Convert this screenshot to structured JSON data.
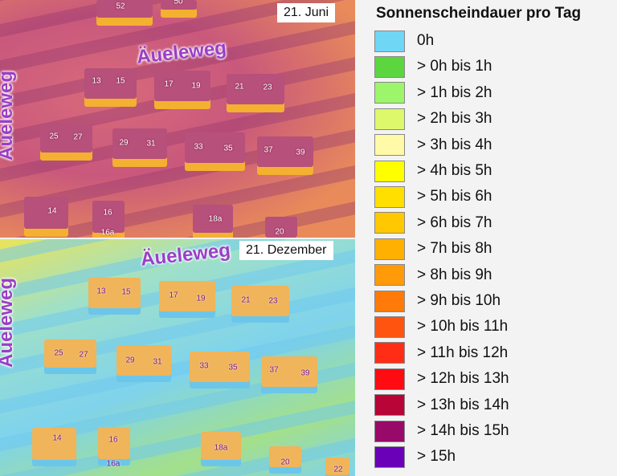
{
  "panels": [
    {
      "date": "21. Juni",
      "street": "Äueleweg",
      "numbers": [
        [
          "52",
          150,
          8
        ],
        [
          "50",
          222,
          2
        ],
        [
          "13",
          120,
          101
        ],
        [
          "15",
          150,
          101
        ],
        [
          "17",
          210,
          105
        ],
        [
          "19",
          244,
          107
        ],
        [
          "21",
          298,
          108
        ],
        [
          "23",
          333,
          109
        ],
        [
          "25",
          67,
          170
        ],
        [
          "27",
          97,
          171
        ],
        [
          "29",
          154,
          178
        ],
        [
          "31",
          188,
          179
        ],
        [
          "33",
          247,
          183
        ],
        [
          "35",
          284,
          185
        ],
        [
          "37",
          334,
          187
        ],
        [
          "39",
          374,
          190
        ],
        [
          "14",
          65,
          263
        ],
        [
          "16",
          134,
          265
        ],
        [
          "16a",
          134,
          290
        ],
        [
          "18a",
          268,
          273
        ],
        [
          "20",
          348,
          289
        ]
      ]
    },
    {
      "date": "21. Dezember",
      "street": "Äueleweg",
      "numbers": [
        [
          "13",
          126,
          65
        ],
        [
          "15",
          157,
          66
        ],
        [
          "17",
          216,
          70
        ],
        [
          "19",
          250,
          74
        ],
        [
          "21",
          306,
          76
        ],
        [
          "23",
          340,
          77
        ],
        [
          "25",
          73,
          142
        ],
        [
          "27",
          104,
          144
        ],
        [
          "29",
          162,
          151
        ],
        [
          "31",
          196,
          153
        ],
        [
          "33",
          254,
          158
        ],
        [
          "35",
          290,
          160
        ],
        [
          "37",
          341,
          163
        ],
        [
          "39",
          380,
          167
        ],
        [
          "14",
          71,
          248
        ],
        [
          "16",
          141,
          250
        ],
        [
          "16a",
          141,
          280
        ],
        [
          "18a",
          275,
          260
        ],
        [
          "20",
          355,
          278
        ],
        [
          "22",
          421,
          287
        ]
      ]
    }
  ],
  "legend": {
    "title": "Sonnenscheindauer pro Tag",
    "items": [
      {
        "label": "0h",
        "color": "#6fd6f6"
      },
      {
        "label": "> 0h bis 1h",
        "color": "#5cd63e"
      },
      {
        "label": "> 1h bis 2h",
        "color": "#9cf56a"
      },
      {
        "label": "> 2h bis 3h",
        "color": "#ddf86a"
      },
      {
        "label": "> 3h bis 4h",
        "color": "#fffaa8"
      },
      {
        "label": "> 4h bis 5h",
        "color": "#ffff00"
      },
      {
        "label": "> 5h bis 6h",
        "color": "#ffdf00"
      },
      {
        "label": "> 6h bis 7h",
        "color": "#ffc800"
      },
      {
        "label": "> 7h bis 8h",
        "color": "#ffb000"
      },
      {
        "label": "> 8h bis 9h",
        "color": "#ff9a08"
      },
      {
        "label": "> 9h bis 10h",
        "color": "#ff7a08"
      },
      {
        "label": "> 10h bis 11h",
        "color": "#ff5410"
      },
      {
        "label": "> 11h bis 12h",
        "color": "#ff2d16"
      },
      {
        "label": "> 12h bis 13h",
        "color": "#ff0b12"
      },
      {
        "label": "> 13h bis 14h",
        "color": "#b80436"
      },
      {
        "label": "> 14h bis 15h",
        "color": "#99096a"
      },
      {
        "label": "> 15h",
        "color": "#6a00b8"
      }
    ]
  }
}
